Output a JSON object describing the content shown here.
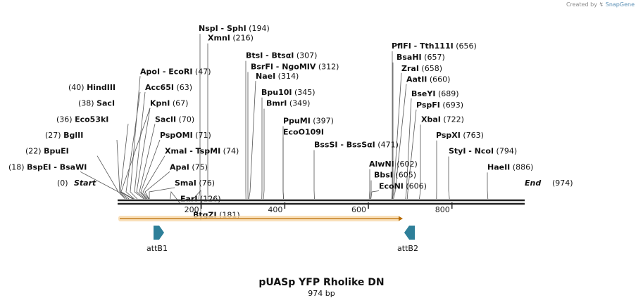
{
  "credit": {
    "prefix": "Created by",
    "brand": "SnapGene"
  },
  "title": "pUASp YFP Rholike DN",
  "length_label": "974 bp",
  "sequence_length": 974,
  "start_label": "Start",
  "start_pos": "(0)",
  "end_label": "End",
  "end_pos": "(974)",
  "axis_ticks": [
    "200",
    "400",
    "600",
    "800"
  ],
  "axis_tick_values": [
    200,
    400,
    600,
    800
  ],
  "sites": [
    {
      "name": "BspEI",
      "name2": "BsaWI",
      "pos": "(18)",
      "site": 18,
      "side": "left"
    },
    {
      "name": "BpuEI",
      "pos": "(22)",
      "site": 22,
      "side": "left"
    },
    {
      "name": "BglII",
      "pos": "(27)",
      "site": 27,
      "side": "left"
    },
    {
      "name": "Eco53kI",
      "pos": "(36)",
      "site": 36,
      "side": "left"
    },
    {
      "name": "SacI",
      "pos": "(38)",
      "site": 38,
      "side": "left"
    },
    {
      "name": "HindIII",
      "pos": "(40)",
      "site": 40,
      "side": "left"
    },
    {
      "name": "ApoI",
      "name2": "EcoRI",
      "pos": "(47)",
      "site": 47,
      "side": "right"
    },
    {
      "name": "Acc65I",
      "pos": "(63)",
      "site": 63,
      "side": "right"
    },
    {
      "name": "KpnI",
      "pos": "(67)",
      "site": 67,
      "side": "right"
    },
    {
      "name": "SacII",
      "pos": "(70)",
      "site": 70,
      "side": "right"
    },
    {
      "name": "PspOMI",
      "pos": "(71)",
      "site": 71,
      "side": "right"
    },
    {
      "name": "XmaI",
      "name2": "TspMI",
      "pos": "(74)",
      "site": 74,
      "side": "right"
    },
    {
      "name": "ApaI",
      "pos": "(75)",
      "site": 75,
      "side": "right"
    },
    {
      "name": "SmaI",
      "pos": "(76)",
      "site": 76,
      "side": "right"
    },
    {
      "name": "EarI",
      "pos": "(126)",
      "site": 126,
      "side": "right"
    },
    {
      "name": "BtgZI",
      "pos": "(181)",
      "site": 181,
      "side": "right"
    },
    {
      "name": "NspI",
      "name2": "SphI",
      "pos": "(194)",
      "site": 194,
      "side": "right"
    },
    {
      "name": "XmnI",
      "pos": "(216)",
      "site": 216,
      "side": "right"
    },
    {
      "name": "BtsI",
      "name2": "BtsαI",
      "pos": "(307)",
      "site": 307,
      "side": "right"
    },
    {
      "name": "BsrFI",
      "name2": "NgoMIV",
      "pos": "(312)",
      "site": 312,
      "side": "right"
    },
    {
      "name": "NaeI",
      "pos": "(314)",
      "site": 314,
      "side": "right"
    },
    {
      "name": "Bpu10I",
      "pos": "(345)",
      "site": 345,
      "side": "right"
    },
    {
      "name": "BmrI",
      "pos": "(349)",
      "site": 349,
      "side": "right"
    },
    {
      "name": "PpuMI",
      "pos": "(397)",
      "site": 397,
      "side": "right"
    },
    {
      "name": "EcoO109I",
      "pos": "",
      "site": 397,
      "side": "right"
    },
    {
      "name": "BssSI",
      "name2": "BssSαI",
      "pos": "(471)",
      "site": 471,
      "side": "right"
    },
    {
      "name": "AlwNI",
      "pos": "(602)",
      "site": 602,
      "side": "right"
    },
    {
      "name": "BbsI",
      "pos": "(605)",
      "site": 605,
      "side": "right"
    },
    {
      "name": "EcoNI",
      "pos": "(606)",
      "site": 606,
      "side": "right"
    },
    {
      "name": "PflFI",
      "name2": "Tth111I",
      "pos": "(656)",
      "site": 656,
      "side": "right"
    },
    {
      "name": "BsaHI",
      "pos": "(657)",
      "site": 657,
      "side": "right"
    },
    {
      "name": "ZraI",
      "pos": "(658)",
      "site": 658,
      "side": "right"
    },
    {
      "name": "AatII",
      "pos": "(660)",
      "site": 660,
      "side": "right"
    },
    {
      "name": "BseYI",
      "pos": "(689)",
      "site": 689,
      "side": "right"
    },
    {
      "name": "PspFI",
      "pos": "(693)",
      "site": 693,
      "side": "right"
    },
    {
      "name": "XbaI",
      "pos": "(722)",
      "site": 722,
      "side": "right"
    },
    {
      "name": "PspXI",
      "pos": "(763)",
      "site": 763,
      "side": "right"
    },
    {
      "name": "StyI",
      "name2": "NcoI",
      "pos": "(794)",
      "site": 794,
      "side": "right"
    },
    {
      "name": "HaeII",
      "pos": "(886)",
      "site": 886,
      "side": "right"
    }
  ],
  "features": [
    {
      "name": "attB1",
      "direction": "forward"
    },
    {
      "name": "attB2",
      "direction": "reverse"
    }
  ],
  "colors": {
    "backbone": "#222222",
    "feature_fill": "#2e7f99",
    "orf_fill": "#f5c77e",
    "orf_stroke": "#b86a00",
    "leader_line": "#555555"
  }
}
